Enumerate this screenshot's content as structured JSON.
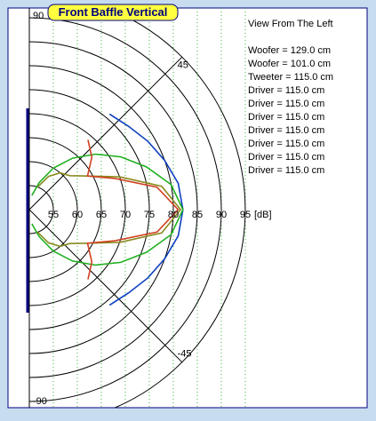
{
  "chart_data": {
    "type": "polar",
    "title": "Front Baffle Vertical",
    "r_label": "[dB]",
    "rlim": [
      50,
      95
    ],
    "rticks": [
      55,
      60,
      65,
      70,
      75,
      80,
      85,
      90,
      95
    ],
    "angle_ticks": [
      90,
      45,
      -45,
      -90
    ],
    "legend_text": [
      "View From The Left",
      "Woofer = 129.0 cm",
      "Woofer = 101.0 cm",
      "Tweeter = 115.0 cm",
      "Driver = 115.0 cm",
      "Driver = 115.0 cm",
      "Driver = 115.0 cm",
      "Driver = 115.0 cm",
      "Driver = 115.0 cm",
      "Driver = 115.0 cm",
      "Driver = 115.0 cm"
    ],
    "angles": [
      -80,
      -70,
      -60,
      -50,
      -40,
      -30,
      -20,
      -10,
      0,
      10,
      20,
      30,
      40,
      50,
      60,
      70,
      80
    ],
    "series": [
      {
        "color": "#1040c0",
        "values": [
          null,
          null,
          null,
          76,
          77,
          78.5,
          80,
          81.5,
          82,
          81.5,
          80,
          78.5,
          77,
          76,
          null,
          null,
          null
        ]
      },
      {
        "color": "#20b020",
        "values": [
          53,
          56,
          60,
          64,
          68,
          72,
          76,
          80,
          82,
          80,
          76,
          72,
          68,
          64,
          60,
          56,
          53
        ]
      },
      {
        "color": "#8a8a20",
        "values": [
          null,
          55,
          58,
          60,
          61,
          64,
          70,
          78,
          81.5,
          78,
          70,
          64,
          61,
          60,
          58,
          55,
          null
        ]
      },
      {
        "color": "#d04020",
        "values": [
          null,
          null,
          null,
          69,
          67,
          64,
          69,
          77,
          81,
          77,
          69,
          64,
          67,
          69,
          null,
          null,
          null
        ]
      }
    ]
  }
}
